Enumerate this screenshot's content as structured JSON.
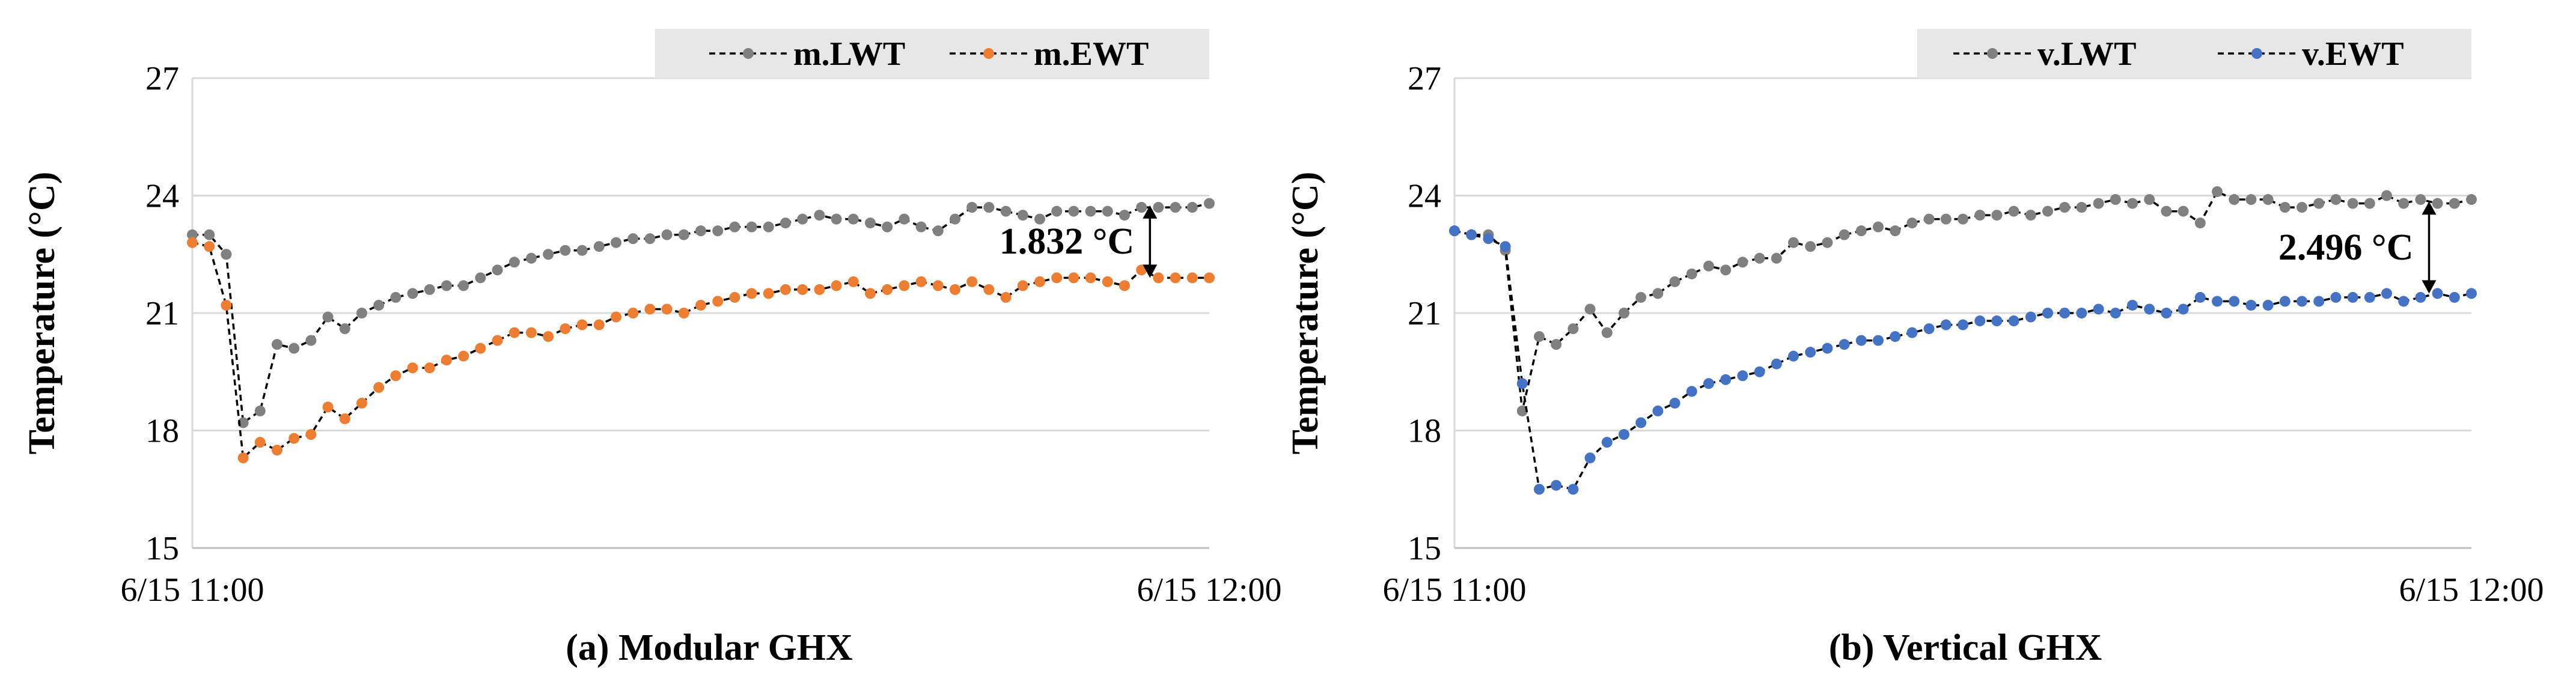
{
  "chart_data": [
    {
      "type": "line",
      "caption": "(a) Modular GHX",
      "ylabel": "Temperature (°C)",
      "xlabel": "",
      "ylim": [
        15,
        27
      ],
      "yticks": [
        "15",
        "18",
        "21",
        "24",
        "27"
      ],
      "xticks": [
        "6/15 11:00",
        "6/15 12:00"
      ],
      "xlim_minutes": [
        0,
        60
      ],
      "grid": true,
      "legend_position": "top-right",
      "annotation": {
        "text": "1.832 °C",
        "x": 56.5,
        "y_top": 23.75,
        "y_bottom": 21.9
      },
      "series": [
        {
          "name": "m.LWT",
          "color": "#808080",
          "x": [
            0,
            1,
            2,
            3,
            4,
            5,
            6,
            7,
            8,
            9,
            10,
            11,
            12,
            13,
            14,
            15,
            16,
            17,
            18,
            19,
            20,
            21,
            22,
            23,
            24,
            25,
            26,
            27,
            28,
            29,
            30,
            31,
            32,
            33,
            34,
            35,
            36,
            37,
            38,
            39,
            40,
            41,
            42,
            43,
            44,
            45,
            46,
            47,
            48,
            49,
            50,
            51,
            52,
            53,
            54,
            55,
            56,
            57,
            58,
            59,
            60
          ],
          "values": [
            23.0,
            23.0,
            22.5,
            18.2,
            18.5,
            20.2,
            20.1,
            20.3,
            20.9,
            20.6,
            21.0,
            21.2,
            21.4,
            21.5,
            21.6,
            21.7,
            21.7,
            21.9,
            22.1,
            22.3,
            22.4,
            22.5,
            22.6,
            22.6,
            22.7,
            22.8,
            22.9,
            22.9,
            23.0,
            23.0,
            23.1,
            23.1,
            23.2,
            23.2,
            23.2,
            23.3,
            23.4,
            23.5,
            23.4,
            23.4,
            23.3,
            23.2,
            23.4,
            23.2,
            23.1,
            23.4,
            23.7,
            23.7,
            23.6,
            23.5,
            23.4,
            23.6,
            23.6,
            23.6,
            23.6,
            23.5,
            23.7,
            23.7,
            23.7,
            23.7,
            23.8
          ]
        },
        {
          "name": "m.EWT",
          "color": "#ED7D31",
          "x": [
            0,
            1,
            2,
            3,
            4,
            5,
            6,
            7,
            8,
            9,
            10,
            11,
            12,
            13,
            14,
            15,
            16,
            17,
            18,
            19,
            20,
            21,
            22,
            23,
            24,
            25,
            26,
            27,
            28,
            29,
            30,
            31,
            32,
            33,
            34,
            35,
            36,
            37,
            38,
            39,
            40,
            41,
            42,
            43,
            44,
            45,
            46,
            47,
            48,
            49,
            50,
            51,
            52,
            53,
            54,
            55,
            56,
            57,
            58,
            59,
            60
          ],
          "values": [
            22.8,
            22.7,
            21.2,
            17.3,
            17.7,
            17.5,
            17.8,
            17.9,
            18.6,
            18.3,
            18.7,
            19.1,
            19.4,
            19.6,
            19.6,
            19.8,
            19.9,
            20.1,
            20.3,
            20.5,
            20.5,
            20.4,
            20.6,
            20.7,
            20.7,
            20.9,
            21.0,
            21.1,
            21.1,
            21.0,
            21.2,
            21.3,
            21.4,
            21.5,
            21.5,
            21.6,
            21.6,
            21.6,
            21.7,
            21.8,
            21.5,
            21.6,
            21.7,
            21.8,
            21.7,
            21.6,
            21.8,
            21.6,
            21.4,
            21.7,
            21.8,
            21.9,
            21.9,
            21.9,
            21.8,
            21.7,
            22.1,
            21.9,
            21.9,
            21.9,
            21.9
          ]
        }
      ]
    },
    {
      "type": "line",
      "caption": "(b) Vertical GHX",
      "ylabel": "Temperature (°C)",
      "xlabel": "",
      "ylim": [
        15,
        27
      ],
      "yticks": [
        "15",
        "18",
        "21",
        "24",
        "27"
      ],
      "xticks": [
        "6/15 11:00",
        "6/15 12:00"
      ],
      "xlim_minutes": [
        0,
        60
      ],
      "grid": true,
      "legend_position": "top-right",
      "annotation": {
        "text": "2.496 °C",
        "x": 57.5,
        "y_top": 23.85,
        "y_bottom": 21.5
      },
      "series": [
        {
          "name": "v.LWT",
          "color": "#808080",
          "x": [
            0,
            1,
            2,
            3,
            4,
            5,
            6,
            7,
            8,
            9,
            10,
            11,
            12,
            13,
            14,
            15,
            16,
            17,
            18,
            19,
            20,
            21,
            22,
            23,
            24,
            25,
            26,
            27,
            28,
            29,
            30,
            31,
            32,
            33,
            34,
            35,
            36,
            37,
            38,
            39,
            40,
            41,
            42,
            43,
            44,
            45,
            46,
            47,
            48,
            49,
            50,
            51,
            52,
            53,
            54,
            55,
            56,
            57,
            58,
            59,
            60
          ],
          "values": [
            23.1,
            23.0,
            23.0,
            22.6,
            18.5,
            20.4,
            20.2,
            20.6,
            21.1,
            20.5,
            21.0,
            21.4,
            21.5,
            21.8,
            22.0,
            22.2,
            22.1,
            22.3,
            22.4,
            22.4,
            22.8,
            22.7,
            22.8,
            23.0,
            23.1,
            23.2,
            23.1,
            23.3,
            23.4,
            23.4,
            23.4,
            23.5,
            23.5,
            23.6,
            23.5,
            23.6,
            23.7,
            23.7,
            23.8,
            23.9,
            23.8,
            23.9,
            23.6,
            23.6,
            23.3,
            24.1,
            23.9,
            23.9,
            23.9,
            23.7,
            23.7,
            23.8,
            23.9,
            23.8,
            23.8,
            24.0,
            23.8,
            23.9,
            23.8,
            23.8,
            23.9
          ]
        },
        {
          "name": "v.EWT",
          "color": "#4472C4",
          "x": [
            0,
            1,
            2,
            3,
            4,
            5,
            6,
            7,
            8,
            9,
            10,
            11,
            12,
            13,
            14,
            15,
            16,
            17,
            18,
            19,
            20,
            21,
            22,
            23,
            24,
            25,
            26,
            27,
            28,
            29,
            30,
            31,
            32,
            33,
            34,
            35,
            36,
            37,
            38,
            39,
            40,
            41,
            42,
            43,
            44,
            45,
            46,
            47,
            48,
            49,
            50,
            51,
            52,
            53,
            54,
            55,
            56,
            57,
            58,
            59,
            60
          ],
          "values": [
            23.1,
            23.0,
            22.9,
            22.7,
            19.2,
            16.5,
            16.6,
            16.5,
            17.3,
            17.7,
            17.9,
            18.2,
            18.5,
            18.7,
            19.0,
            19.2,
            19.3,
            19.4,
            19.5,
            19.7,
            19.9,
            20.0,
            20.1,
            20.2,
            20.3,
            20.3,
            20.4,
            20.5,
            20.6,
            20.7,
            20.7,
            20.8,
            20.8,
            20.8,
            20.9,
            21.0,
            21.0,
            21.0,
            21.1,
            21.0,
            21.2,
            21.1,
            21.0,
            21.1,
            21.4,
            21.3,
            21.3,
            21.2,
            21.2,
            21.3,
            21.3,
            21.3,
            21.4,
            21.4,
            21.4,
            21.5,
            21.3,
            21.4,
            21.5,
            21.4,
            21.5
          ]
        }
      ]
    }
  ]
}
